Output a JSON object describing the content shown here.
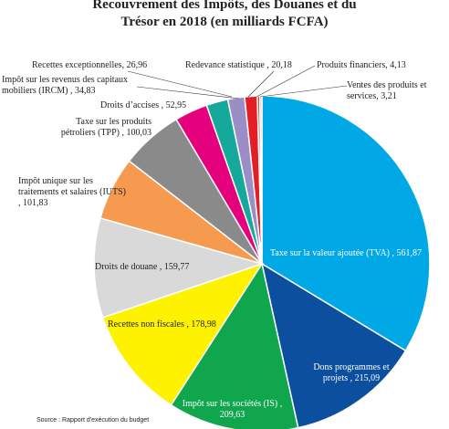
{
  "chart_data": {
    "type": "pie",
    "title": "Recouvrement des Impôts, des Douanes et du Trésor en 2018 (en milliards FCFA)",
    "labels": [
      "Taxe sur la valeur ajoutée (TVA) , 561,87",
      "Dons programmes et projets , 215,09",
      "Impôt sur les sociétés (IS) , 209,63",
      "Recettes non fiscales , 178,98",
      "Droits de douane , 159,77",
      "Impôt unique sur les traitements et salaires (IUTS) , 101,83",
      "Taxe sur les produits pétroliers (TPP) , 100,03",
      "Droits d’accises , 52,95",
      "Impôt sur les revenus des capitaux mobiliers (IRCM) , 34,83",
      "Recettes exceptionnelles, 26,96",
      "Redevance statistique , 20,18",
      "Produits financiers, 4,13",
      "Ventes des produits et services, 3,21"
    ],
    "values": [
      561.87,
      215.09,
      209.63,
      178.98,
      159.77,
      101.83,
      100.03,
      52.95,
      34.83,
      26.96,
      20.18,
      4.13,
      3.21
    ],
    "colors": [
      "#00a8e6",
      "#0b4f9e",
      "#10a64d",
      "#fff200",
      "#d9d9d9",
      "#f59a4e",
      "#8a8a8a",
      "#e5007d",
      "#16a89b",
      "#9b8ec6",
      "#e31e24",
      "#c6544e",
      "#f4a482"
    ],
    "source": "Source : Rapport d'exécution du budget"
  }
}
